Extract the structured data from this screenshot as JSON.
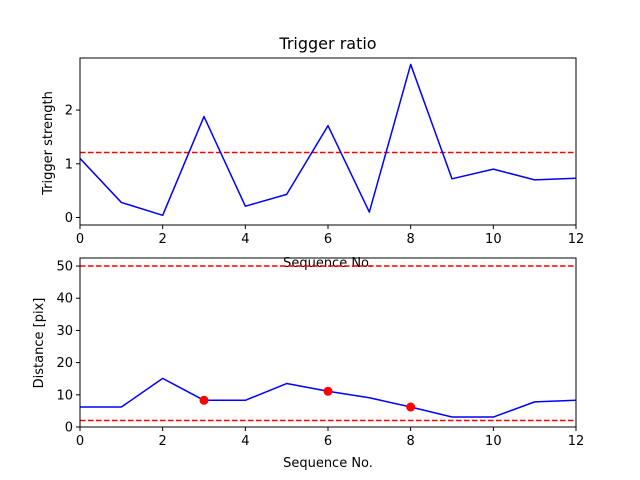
{
  "chart_data": [
    {
      "type": "line",
      "title": "Trigger ratio",
      "xlabel": "Sequence No.",
      "ylabel": "Trigger strength",
      "xlim": [
        0,
        12
      ],
      "ylim": [
        -0.14,
        2.97
      ],
      "xticks": [
        0,
        2,
        4,
        6,
        8,
        10,
        12
      ],
      "yticks": [
        0,
        1,
        2
      ],
      "grid": false,
      "series": [
        {
          "x": [
            0,
            1,
            2,
            3,
            4,
            5,
            6,
            7,
            8,
            9,
            10,
            11,
            12
          ],
          "values": [
            1.1,
            0.28,
            0.04,
            1.88,
            0.21,
            0.43,
            1.71,
            0.1,
            2.85,
            0.72,
            0.9,
            0.7,
            0.73
          ],
          "color": "#0000ff",
          "style": "solid"
        }
      ],
      "reference_lines": [
        {
          "y": 1.21,
          "color": "#ff0000",
          "style": "dashed"
        }
      ]
    },
    {
      "type": "line",
      "title": "",
      "xlabel": "Sequence No.",
      "ylabel": "Distance [pix]",
      "xlim": [
        0,
        12
      ],
      "ylim": [
        0,
        52.5
      ],
      "xticks": [
        0,
        2,
        4,
        6,
        8,
        10,
        12
      ],
      "yticks": [
        0,
        10,
        20,
        30,
        40,
        50
      ],
      "grid": false,
      "series": [
        {
          "x": [
            0,
            1,
            2,
            3,
            4,
            5,
            6,
            7,
            8,
            9,
            10,
            11,
            12
          ],
          "values": [
            6.2,
            6.2,
            15.1,
            8.3,
            8.3,
            13.5,
            11.1,
            9.1,
            6.2,
            3.1,
            3.1,
            7.8,
            8.3
          ],
          "color": "#0000ff",
          "style": "solid"
        }
      ],
      "markers": {
        "x": [
          3,
          6,
          8
        ],
        "values": [
          8.3,
          11.1,
          6.2
        ],
        "color": "#ff0000"
      },
      "reference_lines": [
        {
          "y": 50,
          "color": "#ff0000",
          "style": "dashed"
        },
        {
          "y": 2,
          "color": "#ff0000",
          "style": "dashed"
        }
      ]
    }
  ]
}
